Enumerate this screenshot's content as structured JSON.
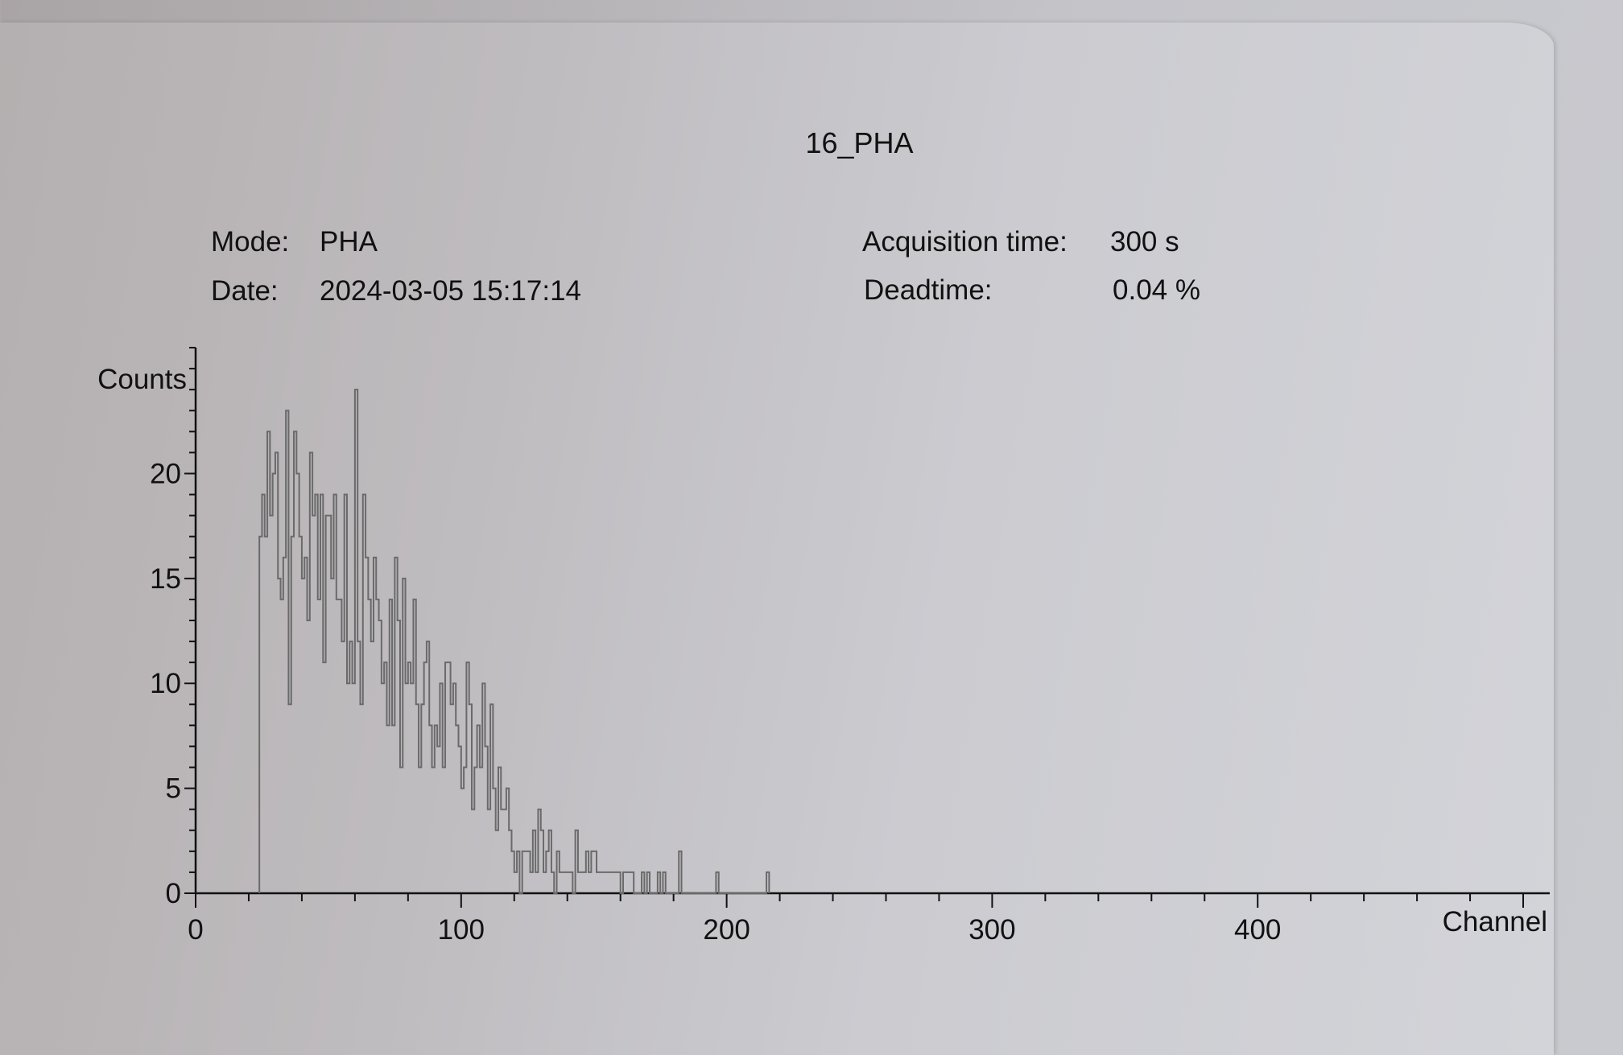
{
  "chart_data": {
    "type": "bar",
    "title": "16_PHA",
    "xlabel": "Channel",
    "ylabel": "Counts",
    "xlim": [
      0,
      510
    ],
    "ylim": [
      0,
      26
    ],
    "x_ticks": [
      0,
      100,
      200,
      300,
      400
    ],
    "y_ticks": [
      0,
      5,
      10,
      15,
      20
    ],
    "grid": false,
    "series": [
      {
        "bin_width": 1,
        "x_start": 24,
        "values": [
          17,
          19,
          17,
          22,
          18,
          20,
          21,
          15,
          14,
          16,
          23,
          9,
          17,
          22,
          20,
          17,
          15,
          16,
          13,
          21,
          18,
          19,
          14,
          19,
          11,
          18,
          18,
          15,
          19,
          14,
          14,
          12,
          19,
          10,
          12,
          10,
          24,
          12,
          9,
          19,
          16,
          14,
          12,
          16,
          14,
          13,
          10,
          11,
          8,
          14,
          8,
          16,
          13,
          6,
          15,
          10,
          11,
          10,
          14,
          9,
          6,
          9,
          11,
          12,
          8,
          6,
          8,
          7,
          10,
          6,
          11,
          11,
          9,
          10,
          8,
          7,
          5,
          6,
          11,
          9,
          4,
          6,
          8,
          6,
          10,
          7,
          4,
          9,
          5,
          3,
          6,
          4,
          4,
          5,
          3,
          2,
          1,
          2,
          0,
          2,
          2,
          2,
          1,
          3,
          1,
          4,
          3,
          1,
          2,
          3,
          1,
          0,
          2,
          1,
          1,
          1,
          1,
          1,
          0,
          3,
          1,
          1,
          1,
          2,
          1,
          2,
          2,
          1,
          1,
          1,
          1,
          1,
          1,
          1,
          1,
          1,
          0,
          1,
          1,
          1,
          1,
          0,
          0,
          0,
          1,
          0,
          1,
          0,
          0,
          0,
          1,
          0,
          1,
          0,
          0,
          0,
          0,
          0,
          2,
          0,
          0,
          0,
          0,
          0,
          0,
          0,
          0,
          0,
          0,
          0,
          0,
          0,
          1,
          0,
          0,
          0,
          0,
          0,
          0,
          0,
          0,
          0,
          0,
          0,
          0,
          0,
          0,
          0,
          0,
          0,
          0,
          1
        ]
      }
    ]
  },
  "header": {
    "mode_label": "Mode:",
    "mode_value": "PHA",
    "date_label": "Date:",
    "date_value": "2024-03-05 15:17:14",
    "acq_label": "Acquisition time:",
    "acq_value": "300 s",
    "dead_label": "Deadtime:",
    "dead_value": "0.04 %"
  }
}
